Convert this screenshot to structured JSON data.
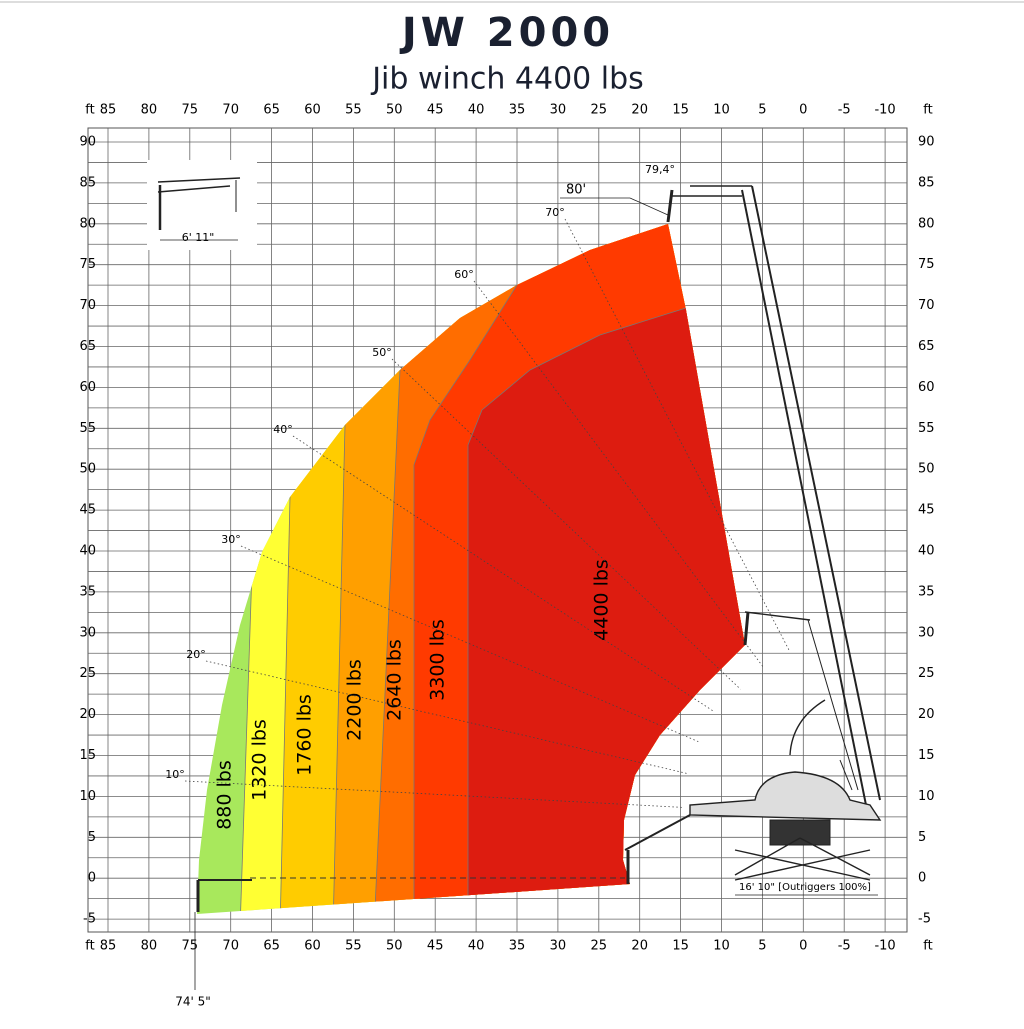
{
  "title": "JW 2000",
  "subtitle": "Jib winch 4400 lbs",
  "axis": {
    "unit": "ft",
    "x_ticks": [
      85,
      80,
      75,
      70,
      65,
      60,
      55,
      50,
      45,
      40,
      35,
      30,
      25,
      20,
      15,
      10,
      5,
      0,
      -5,
      -10
    ],
    "y_ticks": [
      90,
      85,
      80,
      75,
      70,
      65,
      60,
      55,
      50,
      45,
      40,
      35,
      30,
      25,
      20,
      15,
      10,
      5,
      0,
      -5
    ]
  },
  "zones": [
    {
      "label": "880 lbs",
      "color": "#a8e85c"
    },
    {
      "label": "1320 lbs",
      "color": "#ffff33"
    },
    {
      "label": "1760 lbs",
      "color": "#ffcc00"
    },
    {
      "label": "2200 lbs",
      "color": "#ff9f00"
    },
    {
      "label": "2640 lbs",
      "color": "#ff6d00"
    },
    {
      "label": "3300 lbs",
      "color": "#ff3a00"
    },
    {
      "label": "4400 lbs",
      "color": "#dd1c10"
    }
  ],
  "angles": [
    "10°",
    "20°",
    "30°",
    "40°",
    "50°",
    "60°",
    "70°"
  ],
  "annotations": {
    "max_angle": "79,4°",
    "boom_length": "80'",
    "jib_length": "6' 11\"",
    "outriggers": "16' 10\" [Outriggers 100%]",
    "max_reach": "74' 5\""
  }
}
